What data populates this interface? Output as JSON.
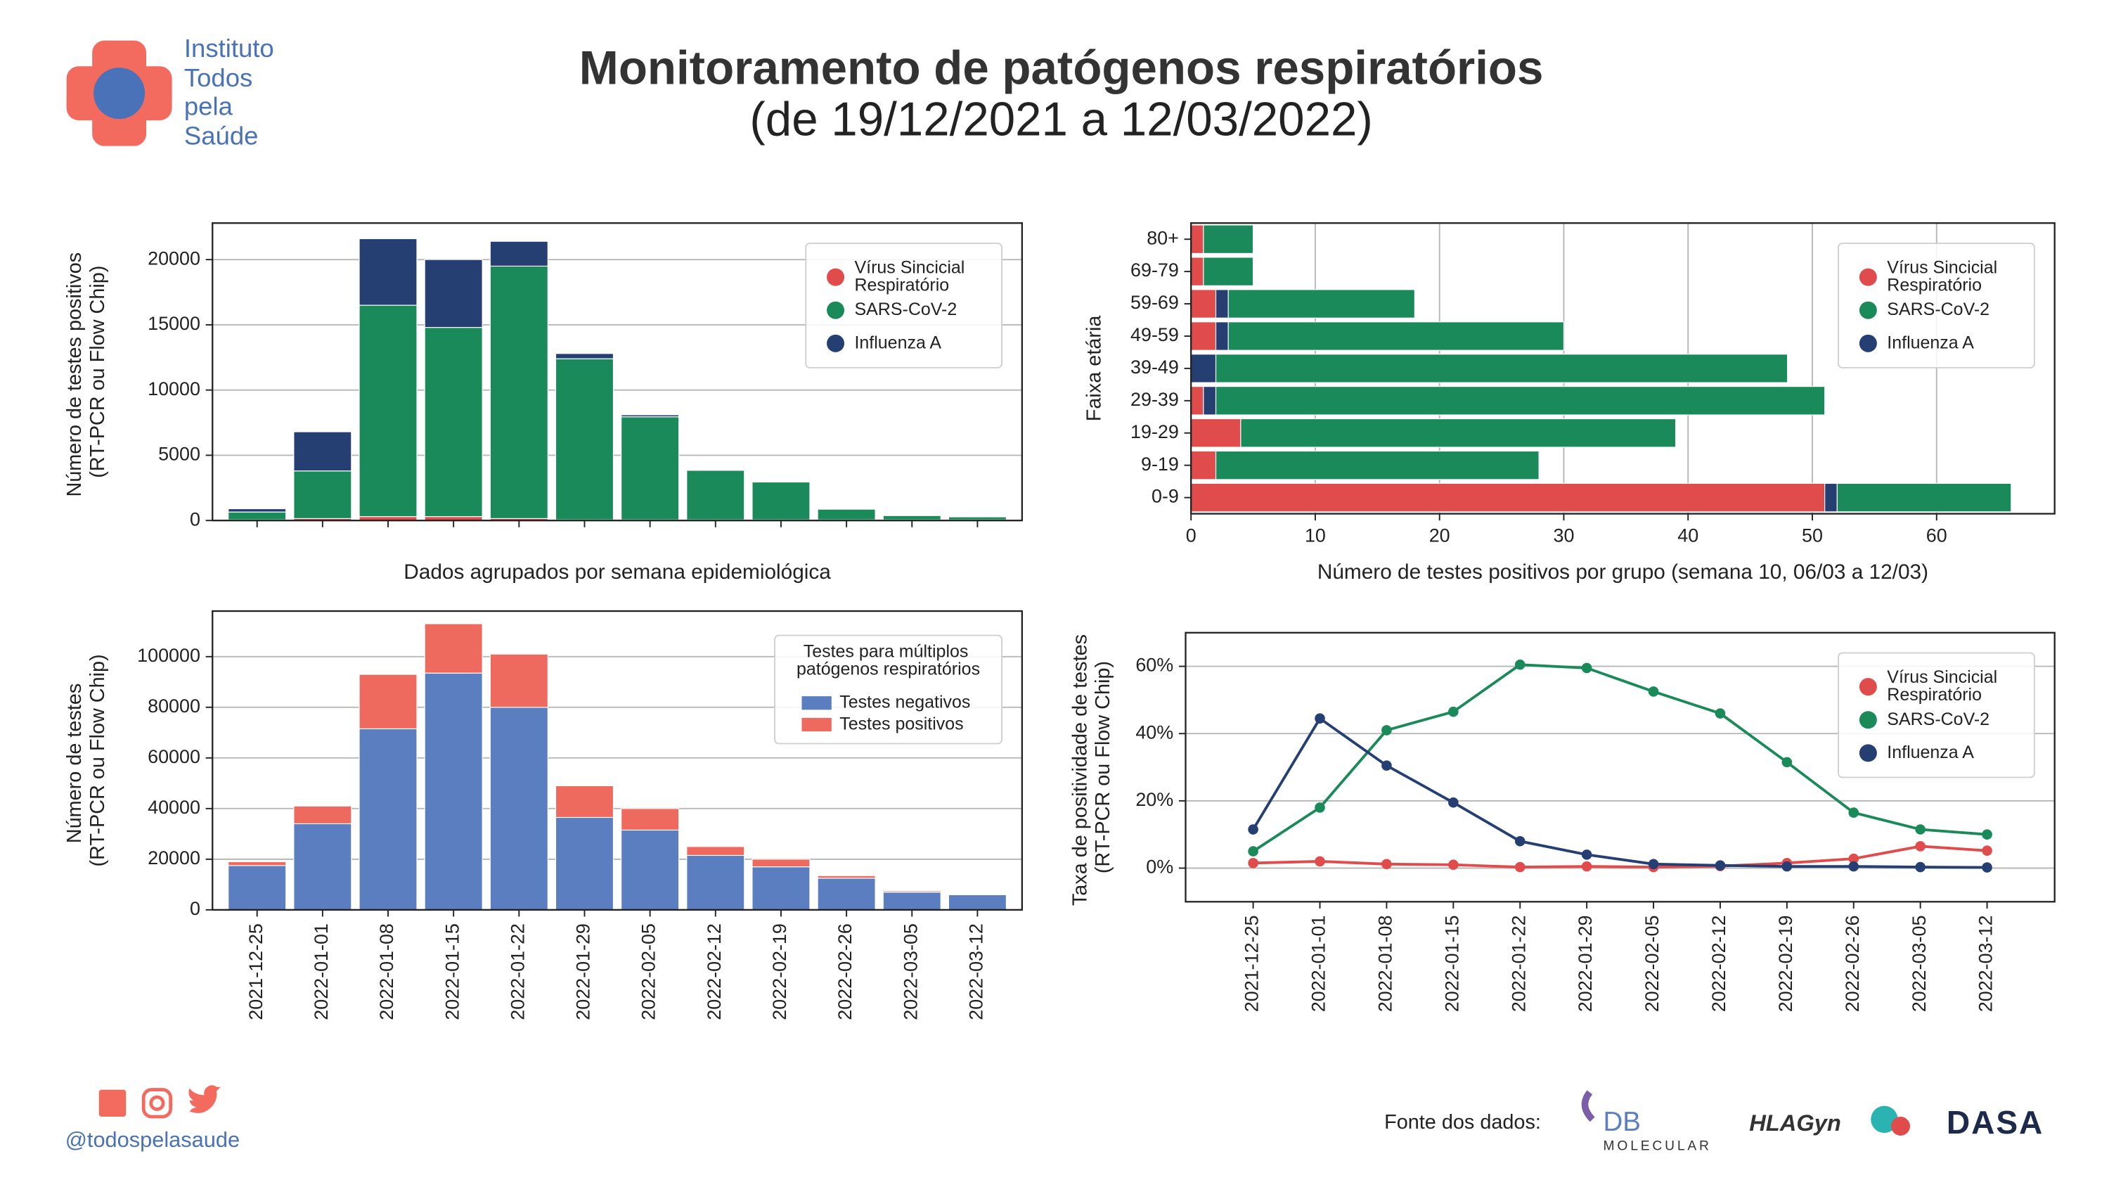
{
  "header": {
    "logo_text": [
      "Instituto",
      "Todos",
      "pela",
      "Saúde"
    ],
    "title": "Monitoramento de patógenos respiratórios",
    "subtitle": "(de 19/12/2021 a 12/03/2022)"
  },
  "chart_data": [
    {
      "type": "bar",
      "stacked": true,
      "categories": [
        null,
        null,
        null,
        null,
        null,
        null,
        null,
        null,
        null,
        null,
        null,
        null
      ],
      "series": [
        {
          "name": "Vírus Sincicial Respiratório",
          "color": "#e04b4b",
          "values": [
            50,
            150,
            300,
            300,
            150,
            50,
            50,
            50,
            50,
            50,
            50,
            50
          ]
        },
        {
          "name": "SARS-CoV-2",
          "color": "#1b8a5a",
          "values": [
            600,
            3650,
            16200,
            14500,
            19350,
            12350,
            7900,
            3800,
            2900,
            820,
            330,
            230
          ]
        },
        {
          "name": "Influenza A",
          "color": "#253f73",
          "values": [
            250,
            3000,
            5100,
            5200,
            1900,
            400,
            150,
            50,
            50,
            30,
            20,
            20
          ]
        }
      ],
      "ylim": [
        0,
        22800
      ],
      "yticks": [
        0,
        5000,
        10000,
        15000,
        20000
      ],
      "grid": true,
      "xlabel": "Dados agrupados por semana epidemiológica",
      "ylabel": "Número de testes positivos (RT-PCR ou Flow Chip)",
      "legend": "upper right"
    },
    {
      "type": "bar",
      "orientation": "horizontal",
      "stacked": true,
      "categories": [
        "0-9",
        "9-19",
        "19-29",
        "29-39",
        "39-49",
        "49-59",
        "59-69",
        "69-79",
        "80+"
      ],
      "series": [
        {
          "name": "Vírus Sincicial Respiratório",
          "color": "#e04b4b",
          "values": [
            51,
            2,
            4,
            1,
            0,
            2,
            2,
            1,
            1
          ]
        },
        {
          "name": "SARS-CoV-2",
          "color": "#1b8a5a",
          "values": [
            14,
            26,
            35,
            49,
            46,
            27,
            15,
            4,
            4
          ]
        },
        {
          "name": "Influenza A",
          "color": "#253f73",
          "values": [
            1,
            0,
            0,
            1,
            2,
            1,
            1,
            0,
            0
          ]
        }
      ],
      "xlim": [
        0,
        69.5
      ],
      "xticks": [
        0,
        10,
        20,
        30,
        40,
        50,
        60
      ],
      "grid": true,
      "xlabel": "Número de testes positivos por grupo (semana 10, 06/03 a 12/03)",
      "ylabel": "Faixa etária",
      "legend": "upper right"
    },
    {
      "type": "bar",
      "stacked": true,
      "categories": [
        "2021-12-25",
        "2022-01-01",
        "2022-01-08",
        "2022-01-15",
        "2022-01-22",
        "2022-01-29",
        "2022-02-05",
        "2022-02-12",
        "2022-02-19",
        "2022-02-26",
        "2022-03-05",
        "2022-03-12"
      ],
      "series": [
        {
          "name": "Testes negativos",
          "color": "#5a7ebf",
          "values": [
            17500,
            34000,
            71500,
            93500,
            80000,
            36500,
            31500,
            21500,
            17000,
            12500,
            7000,
            6000
          ]
        },
        {
          "name": "Testes positivos",
          "color": "#ef6a5e",
          "values": [
            1500,
            7000,
            21500,
            19500,
            21000,
            12500,
            8500,
            3500,
            3000,
            1000,
            500,
            200
          ]
        }
      ],
      "ylim": [
        0,
        118000
      ],
      "yticks": [
        0,
        20000,
        40000,
        60000,
        80000,
        100000
      ],
      "grid": true,
      "ylabel": "Número de testes (RT-PCR ou Flow Chip)",
      "legend": "upper right",
      "legend_title": "Testes para múltiplos patógenos respiratórios"
    },
    {
      "type": "line",
      "categories": [
        "2021-12-25",
        "2022-01-01",
        "2022-01-08",
        "2022-01-15",
        "2022-01-22",
        "2022-01-29",
        "2022-02-05",
        "2022-02-12",
        "2022-02-19",
        "2022-02-26",
        "2022-03-05",
        "2022-03-12"
      ],
      "series": [
        {
          "name": "Vírus Sincicial Respiratório",
          "color": "#e04b4b",
          "values": [
            1.5,
            2,
            1.2,
            1,
            0.3,
            0.5,
            0.3,
            0.6,
            1.5,
            2.8,
            6.5,
            5.2
          ]
        },
        {
          "name": "SARS-CoV-2",
          "color": "#1b8a5a",
          "values": [
            5,
            18,
            41,
            46.5,
            60.5,
            59.5,
            52.5,
            46,
            31.5,
            16.5,
            11.5,
            10
          ]
        },
        {
          "name": "Influenza A",
          "color": "#253f73",
          "values": [
            11.5,
            44.5,
            30.5,
            19.5,
            8,
            4,
            1.2,
            0.8,
            0.5,
            0.5,
            0.3,
            0.2
          ]
        }
      ],
      "ylim": [
        -10,
        70
      ],
      "yticks": [
        {
          "value": 0,
          "label": "0%"
        },
        {
          "value": 20,
          "label": "20%"
        },
        {
          "value": 40,
          "label": "40%"
        },
        {
          "value": 60,
          "label": "60%"
        }
      ],
      "grid": true,
      "ylabel": "Taxa de positividade de testes (RT-PCR ou Flow Chip)",
      "legend": "upper right"
    }
  ],
  "footer": {
    "handle": "@todospelasaude",
    "source_label": "Fonte dos dados:",
    "sources": [
      "DB",
      "MOLECULAR",
      "HLAGyn",
      "DASA"
    ]
  }
}
